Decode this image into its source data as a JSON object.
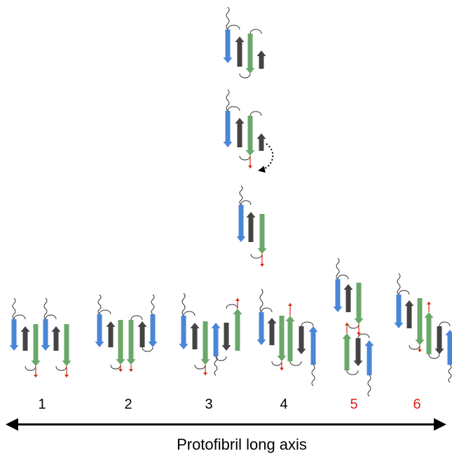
{
  "labels": [
    {
      "text": "1",
      "color": "#000000"
    },
    {
      "text": "2",
      "color": "#000000"
    },
    {
      "text": "3",
      "color": "#000000"
    },
    {
      "text": "4",
      "color": "#000000"
    },
    {
      "text": "5",
      "color": "#e02020"
    },
    {
      "text": "6",
      "color": "#e02020"
    }
  ],
  "axis_label": "Protofibril long axis"
}
